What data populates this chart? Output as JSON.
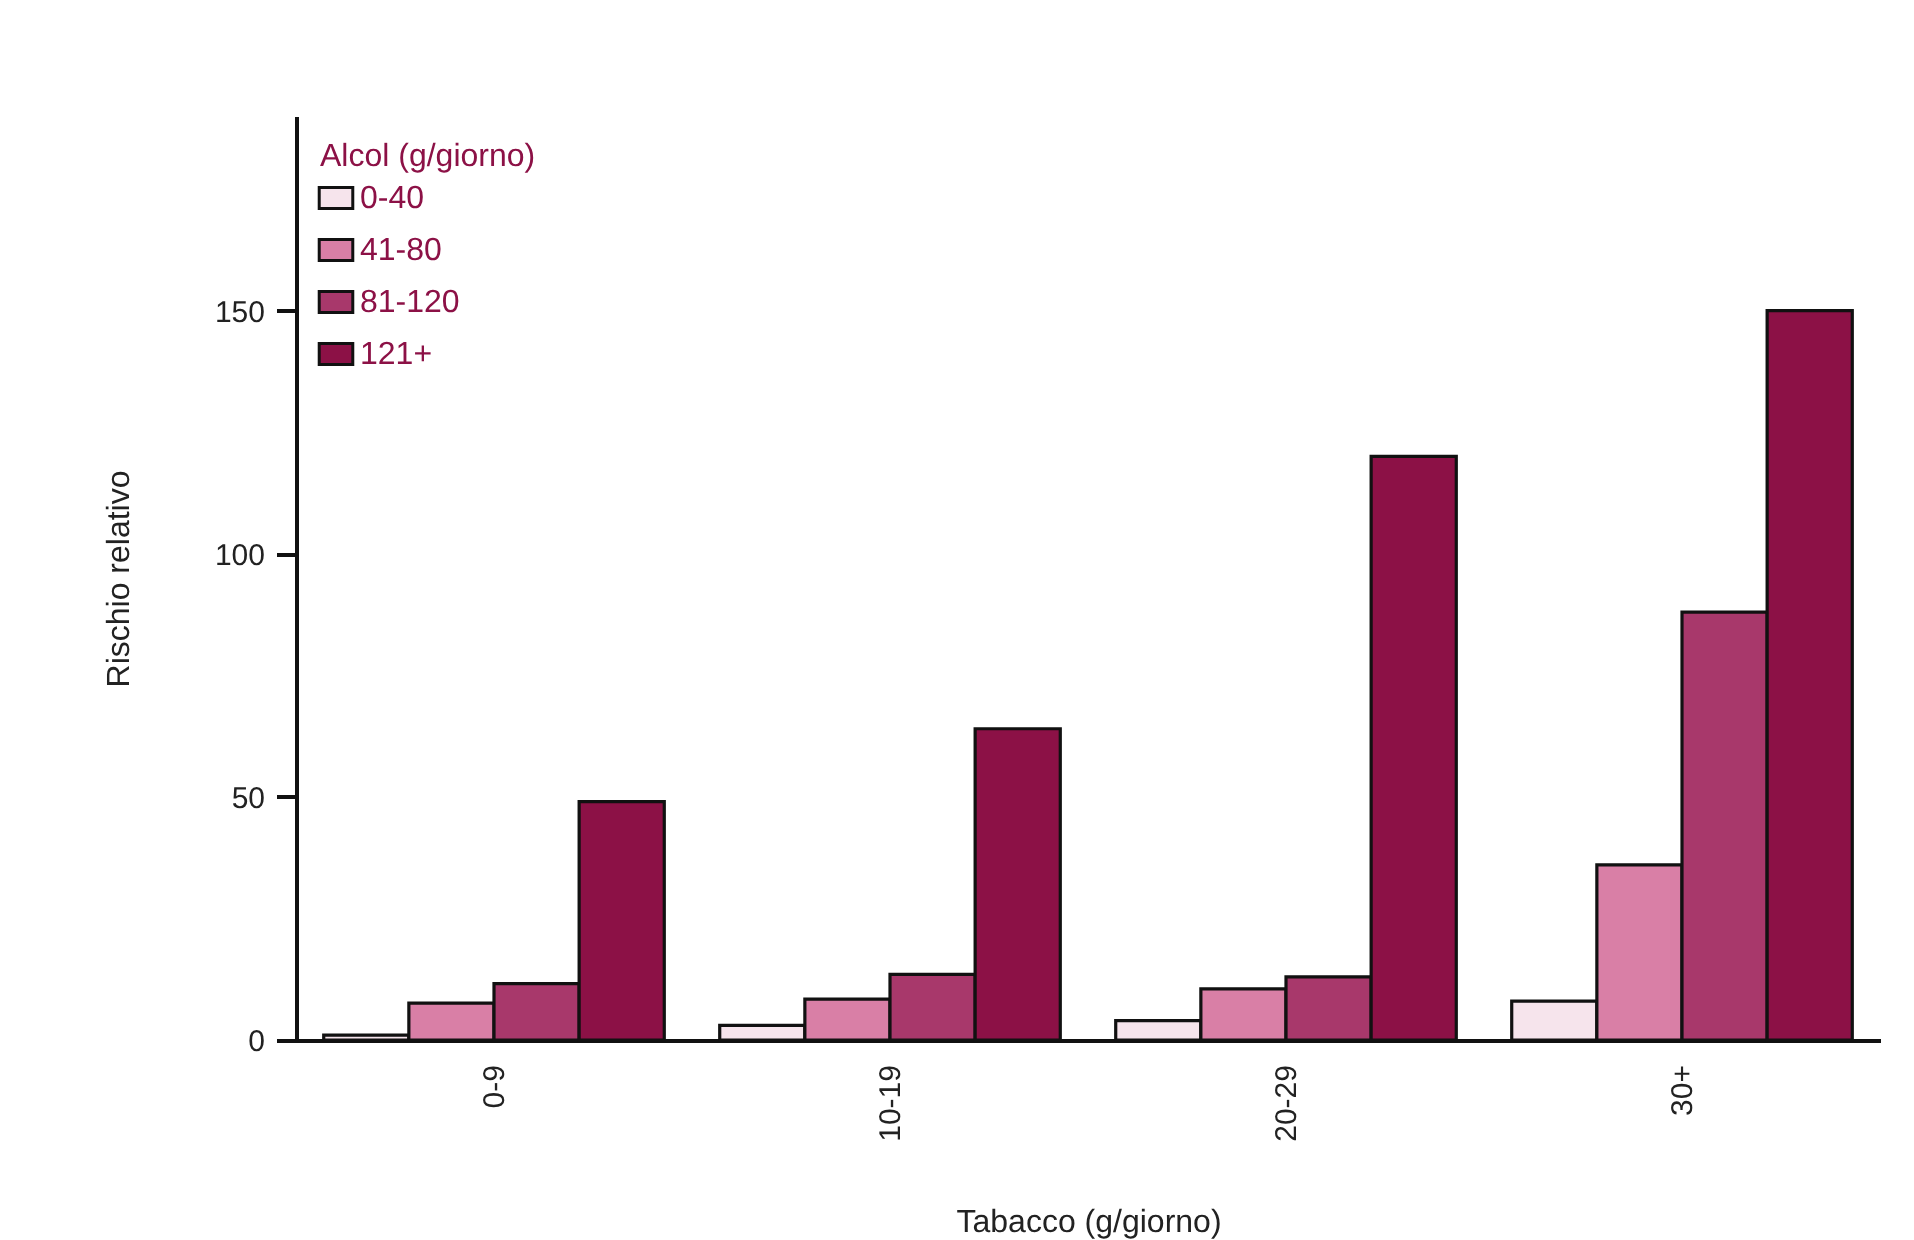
{
  "chart_data": {
    "type": "bar",
    "xlabel": "Tabacco (g/giorno)",
    "ylabel": "Rischio relativo",
    "legend_title": "Alcol (g/giorno)",
    "legend": "top left",
    "grid": false,
    "categories": [
      "0-9",
      "10-19",
      "20-29",
      "30+"
    ],
    "ylim": [
      0,
      190
    ],
    "yticks": [
      0,
      50,
      100,
      150
    ],
    "series": [
      {
        "name": "0-40",
        "color": "#f6e4ec",
        "values": [
          1,
          3,
          4,
          8
        ]
      },
      {
        "name": "41-80",
        "color": "#d97fa6",
        "values": [
          7.6,
          8.4,
          10.5,
          36
        ]
      },
      {
        "name": "81-120",
        "color": "#a8386b",
        "values": [
          11.6,
          13.5,
          13,
          88
        ]
      },
      {
        "name": "121+",
        "color": "#8c1146",
        "values": [
          49,
          64,
          120,
          150
        ]
      }
    ]
  }
}
